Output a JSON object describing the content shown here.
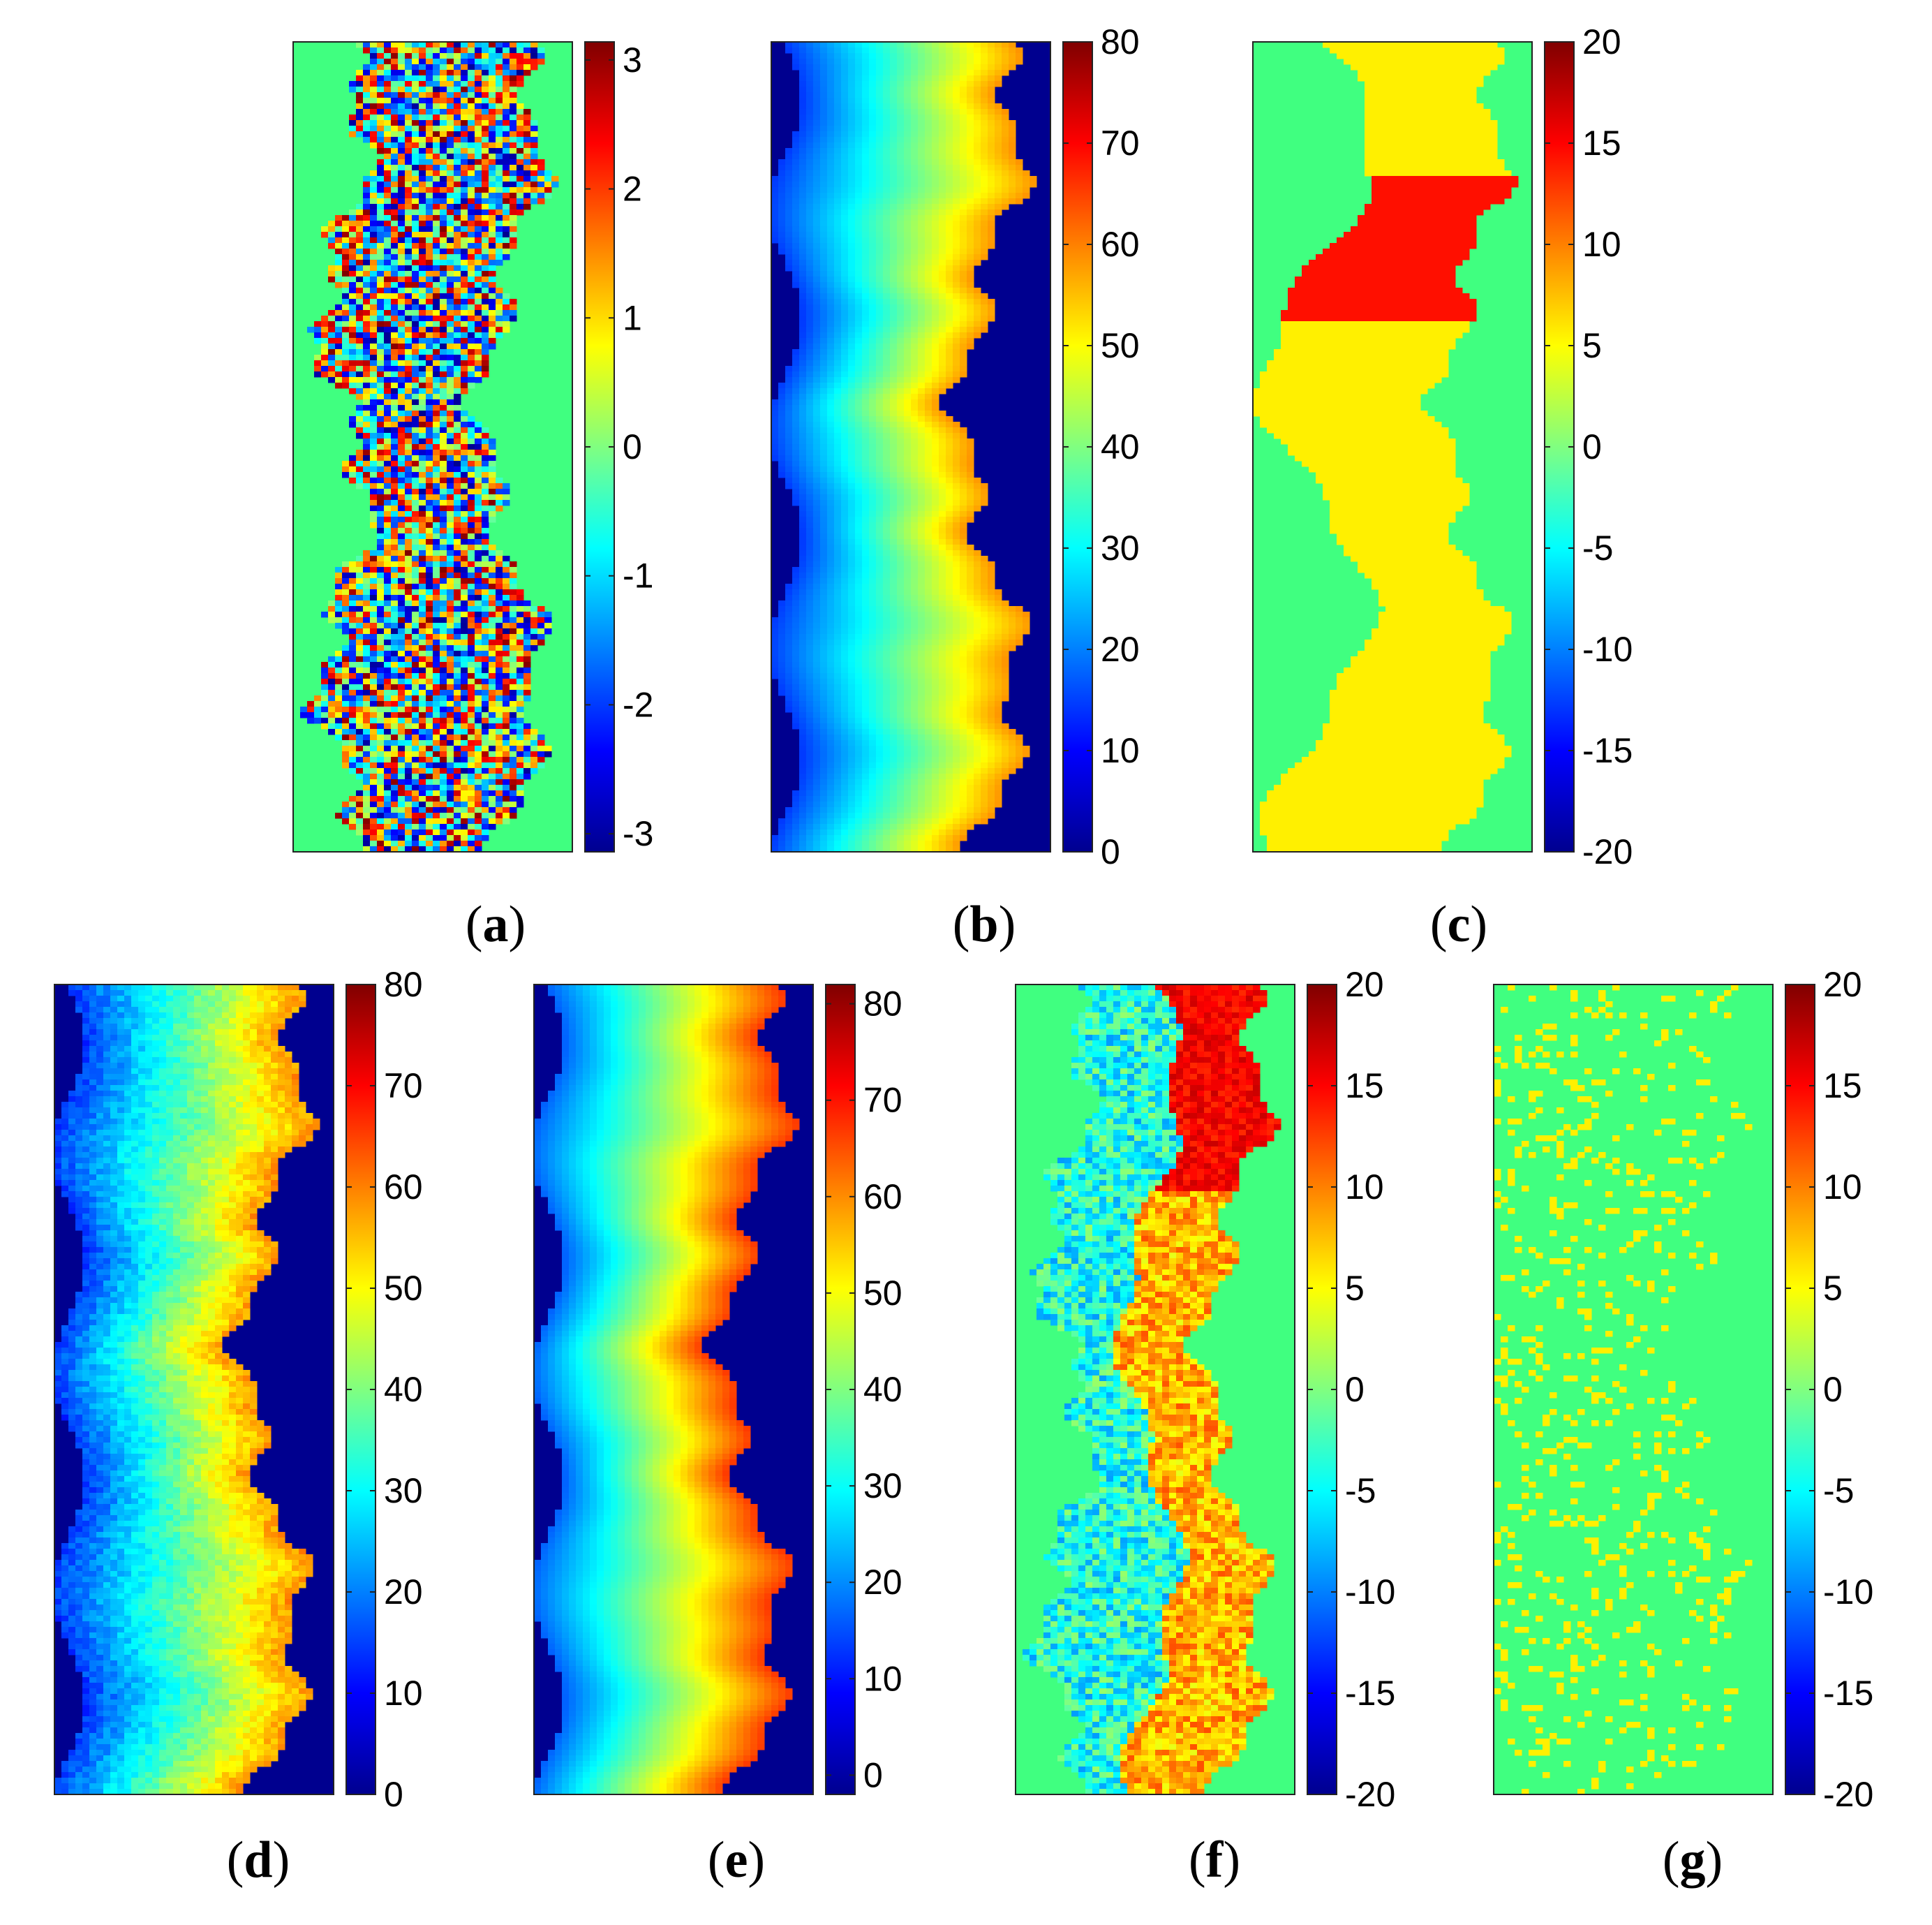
{
  "colormap": [
    "#00008f",
    "#0000ff",
    "#0080ff",
    "#00ffff",
    "#80ff80",
    "#ffff00",
    "#ff8000",
    "#ff0000",
    "#800000"
  ],
  "panels": [
    {
      "id": "a",
      "caption": "a",
      "type": "wrapped-phase",
      "clim": [
        -3.14,
        3.14
      ],
      "ticks": [
        {
          "v": 3,
          "label": "3"
        },
        {
          "v": 2,
          "label": "2"
        },
        {
          "v": 1,
          "label": "1"
        },
        {
          "v": 0,
          "label": "0"
        },
        {
          "v": -1,
          "label": "-1"
        },
        {
          "v": -2,
          "label": "-2"
        },
        {
          "v": -3,
          "label": "-3"
        }
      ]
    },
    {
      "id": "b",
      "caption": "b",
      "type": "height",
      "clim": [
        0,
        80
      ],
      "ticks": [
        {
          "v": 80,
          "label": "80"
        },
        {
          "v": 70,
          "label": "70"
        },
        {
          "v": 60,
          "label": "60"
        },
        {
          "v": 50,
          "label": "50"
        },
        {
          "v": 40,
          "label": "40"
        },
        {
          "v": 30,
          "label": "30"
        },
        {
          "v": 20,
          "label": "20"
        },
        {
          "v": 10,
          "label": "10"
        },
        {
          "v": 0,
          "label": "0"
        }
      ]
    },
    {
      "id": "c",
      "caption": "c",
      "type": "error-blocks",
      "clim": [
        -20,
        20
      ],
      "ticks": [
        {
          "v": 20,
          "label": "20"
        },
        {
          "v": 15,
          "label": "15"
        },
        {
          "v": 10,
          "label": "10"
        },
        {
          "v": 5,
          "label": "5"
        },
        {
          "v": 0,
          "label": "0"
        },
        {
          "v": -5,
          "label": "-5"
        },
        {
          "v": -10,
          "label": "-10"
        },
        {
          "v": -15,
          "label": "-15"
        },
        {
          "v": -20,
          "label": "-20"
        }
      ]
    },
    {
      "id": "d",
      "caption": "d",
      "type": "height-noisy",
      "clim": [
        0,
        80
      ],
      "ticks": [
        {
          "v": 80,
          "label": "80"
        },
        {
          "v": 70,
          "label": "70"
        },
        {
          "v": 60,
          "label": "60"
        },
        {
          "v": 50,
          "label": "50"
        },
        {
          "v": 40,
          "label": "40"
        },
        {
          "v": 30,
          "label": "30"
        },
        {
          "v": 20,
          "label": "20"
        },
        {
          "v": 10,
          "label": "10"
        },
        {
          "v": 0,
          "label": "0"
        }
      ]
    },
    {
      "id": "e",
      "caption": "e",
      "type": "height-high",
      "clim": [
        -2,
        82
      ],
      "ticks": [
        {
          "v": 80,
          "label": "80"
        },
        {
          "v": 70,
          "label": "70"
        },
        {
          "v": 60,
          "label": "60"
        },
        {
          "v": 50,
          "label": "50"
        },
        {
          "v": 40,
          "label": "40"
        },
        {
          "v": 30,
          "label": "30"
        },
        {
          "v": 20,
          "label": "20"
        },
        {
          "v": 10,
          "label": "10"
        },
        {
          "v": 0,
          "label": "0"
        }
      ]
    },
    {
      "id": "f",
      "caption": "f",
      "type": "error-noisy",
      "clim": [
        -20,
        20
      ],
      "ticks": [
        {
          "v": 20,
          "label": "20"
        },
        {
          "v": 15,
          "label": "15"
        },
        {
          "v": 10,
          "label": "10"
        },
        {
          "v": 5,
          "label": "5"
        },
        {
          "v": 0,
          "label": "0"
        },
        {
          "v": -5,
          "label": "-5"
        },
        {
          "v": -10,
          "label": "-10"
        },
        {
          "v": -15,
          "label": "-15"
        },
        {
          "v": -20,
          "label": "-20"
        }
      ]
    },
    {
      "id": "g",
      "caption": "g",
      "type": "error-small",
      "clim": [
        -20,
        20
      ],
      "ticks": [
        {
          "v": 20,
          "label": "20"
        },
        {
          "v": 15,
          "label": "15"
        },
        {
          "v": 10,
          "label": "10"
        },
        {
          "v": 5,
          "label": "5"
        },
        {
          "v": 0,
          "label": "0"
        },
        {
          "v": -5,
          "label": "-5"
        },
        {
          "v": -10,
          "label": "-10"
        },
        {
          "v": -15,
          "label": "-15"
        },
        {
          "v": -20,
          "label": "-20"
        }
      ]
    }
  ],
  "chart_data": {
    "type": "heatmap",
    "title": "",
    "xlabel": "",
    "ylabel": "",
    "colorbar_ranges": {
      "a": [
        -3,
        3
      ],
      "b": [
        0,
        80
      ],
      "c": [
        -20,
        20
      ],
      "d": [
        0,
        80
      ],
      "e": [
        0,
        80
      ],
      "f": [
        -20,
        20
      ],
      "g": [
        -20,
        20
      ]
    }
  }
}
